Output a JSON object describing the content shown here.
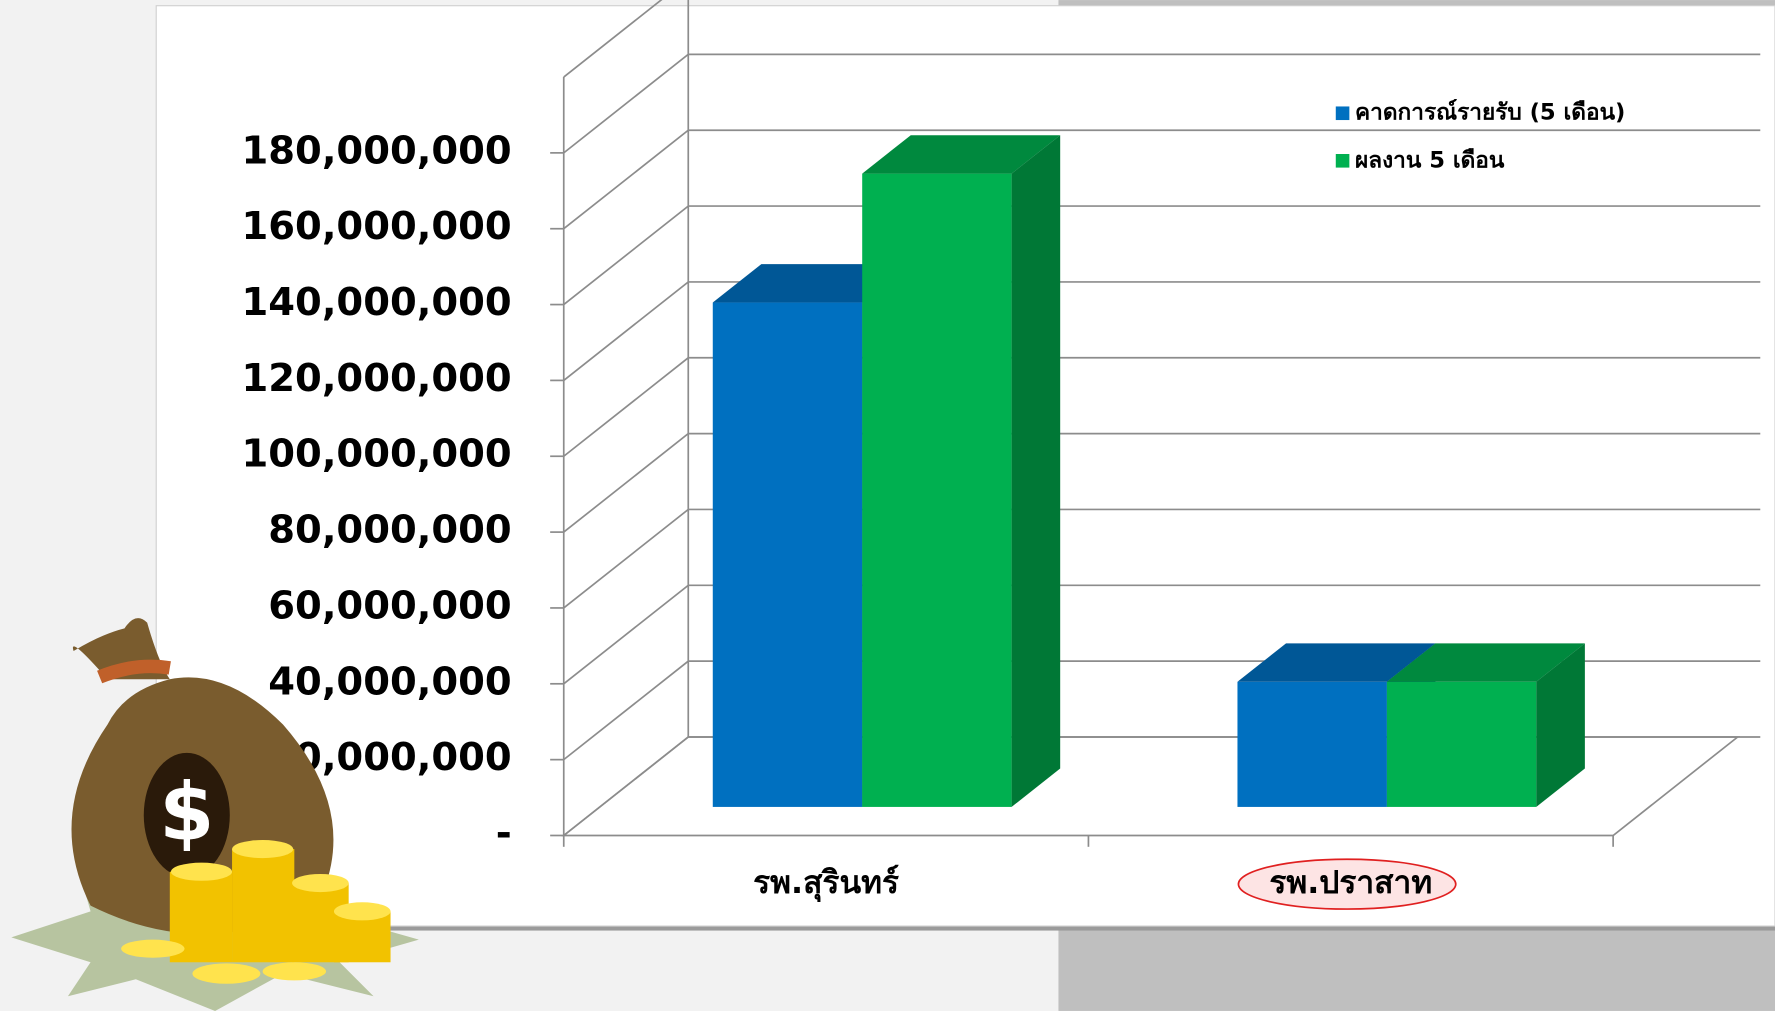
{
  "chart_data": {
    "type": "bar3d",
    "categories": [
      "รพ.สุรินทร์",
      "รพ.ปราสาท"
    ],
    "series": [
      {
        "name": "คาดการณ์รายรับ (5 เดือน)",
        "color": "#0070c0",
        "values": [
          133000000,
          33000000
        ]
      },
      {
        "name": "ผลงาน 5 เดือน",
        "color": "#00b050",
        "values": [
          167000000,
          33000000
        ]
      }
    ],
    "ylim": [
      0,
      200000000
    ],
    "yticks": [
      {
        "value": 0,
        "label": "-"
      },
      {
        "value": 20000000,
        "label": "20,000,000"
      },
      {
        "value": 40000000,
        "label": "40,000,000"
      },
      {
        "value": 60000000,
        "label": "60,000,000"
      },
      {
        "value": 80000000,
        "label": "80,000,000"
      },
      {
        "value": 100000000,
        "label": "100,000,000"
      },
      {
        "value": 120000000,
        "label": "120,000,000"
      },
      {
        "value": 140000000,
        "label": "140,000,000"
      },
      {
        "value": 160000000,
        "label": "160,000,000"
      },
      {
        "value": 180000000,
        "label": "180,000,000"
      }
    ],
    "grid": true,
    "legend": "top-right"
  }
}
